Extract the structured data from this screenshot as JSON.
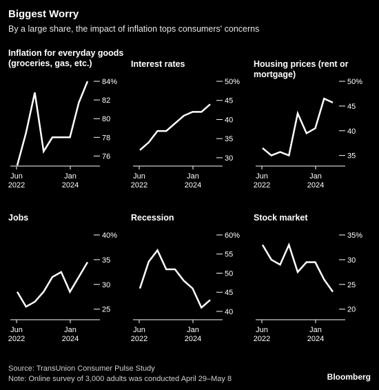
{
  "header": {
    "title": "Biggest Worry",
    "subtitle": "By a large share, the impact of inflation tops consumers' concerns"
  },
  "footer": {
    "source": "Source: TransUnion Consumer Pulse Study",
    "note": "Note: Online survey of 3,000 adults was conducted April 29–May 8",
    "brand": "Bloomberg"
  },
  "colors": {
    "background": "#000000",
    "line": "#ffffff",
    "axis": "#ffffff"
  },
  "chart_data": [
    {
      "type": "line",
      "title": "Inflation for everyday goods (groceries, gas, etc.)",
      "x_ticks": [
        [
          "Jun",
          "2022"
        ],
        [
          "Jan",
          "2024"
        ]
      ],
      "ylim": [
        75,
        84
      ],
      "y_ticks": [
        "76",
        "78",
        "80",
        "82",
        "84%"
      ],
      "y_tick_values": [
        76,
        78,
        80,
        82,
        84
      ],
      "series": [
        {
          "values": [
            75,
            78.5,
            82.8,
            76.5,
            78,
            78,
            78,
            81.7,
            84
          ]
        }
      ]
    },
    {
      "type": "line",
      "title": "Interest rates",
      "x_ticks": [
        [
          "Jun",
          "2022"
        ],
        [
          "Jan",
          "2024"
        ]
      ],
      "ylim": [
        28,
        50
      ],
      "y_ticks": [
        "30",
        "35",
        "40",
        "45",
        "50%"
      ],
      "y_tick_values": [
        30,
        35,
        40,
        45,
        50
      ],
      "series": [
        {
          "values": [
            32,
            34,
            37,
            37,
            39,
            41,
            42,
            42,
            44
          ]
        }
      ]
    },
    {
      "type": "line",
      "title": "Housing prices (rent or mortgage)",
      "x_ticks": [
        [
          "Jun",
          "2022"
        ],
        [
          "Jan",
          "2024"
        ]
      ],
      "ylim": [
        33,
        50
      ],
      "y_ticks": [
        "35",
        "40",
        "45",
        "50%"
      ],
      "y_tick_values": [
        35,
        40,
        45,
        50
      ],
      "series": [
        {
          "values": [
            36.5,
            35,
            35.7,
            35,
            43.5,
            39.5,
            40.5,
            46.5,
            45.7
          ]
        }
      ]
    },
    {
      "type": "line",
      "title": "Jobs",
      "x_ticks": [
        [
          "Jun",
          "2022"
        ],
        [
          "Jan",
          "2024"
        ]
      ],
      "ylim": [
        23,
        40
      ],
      "y_ticks": [
        "25",
        "30",
        "35",
        "40%"
      ],
      "y_tick_values": [
        25,
        30,
        35,
        40
      ],
      "series": [
        {
          "values": [
            28.5,
            25.5,
            26.5,
            28.5,
            31.5,
            32.5,
            28.5,
            31.5,
            34.5
          ]
        }
      ]
    },
    {
      "type": "line",
      "title": "Recession",
      "x_ticks": [
        [
          "Jun",
          "2022"
        ],
        [
          "Jan",
          "2024"
        ]
      ],
      "ylim": [
        38,
        60
      ],
      "y_ticks": [
        "40",
        "45",
        "50",
        "55",
        "60%"
      ],
      "y_tick_values": [
        40,
        45,
        50,
        55,
        60
      ],
      "series": [
        {
          "values": [
            46,
            53,
            56,
            51,
            51,
            48,
            46,
            41,
            43
          ]
        }
      ]
    },
    {
      "type": "line",
      "title": "Stock market",
      "x_ticks": [
        [
          "Jun",
          "2022"
        ],
        [
          "Jan",
          "2024"
        ]
      ],
      "ylim": [
        18,
        35
      ],
      "y_ticks": [
        "20",
        "25",
        "30",
        "35%"
      ],
      "y_tick_values": [
        20,
        25,
        30,
        35
      ],
      "series": [
        {
          "values": [
            33,
            30,
            29,
            33,
            27.5,
            29.5,
            29.5,
            26,
            23.5
          ]
        }
      ]
    }
  ]
}
